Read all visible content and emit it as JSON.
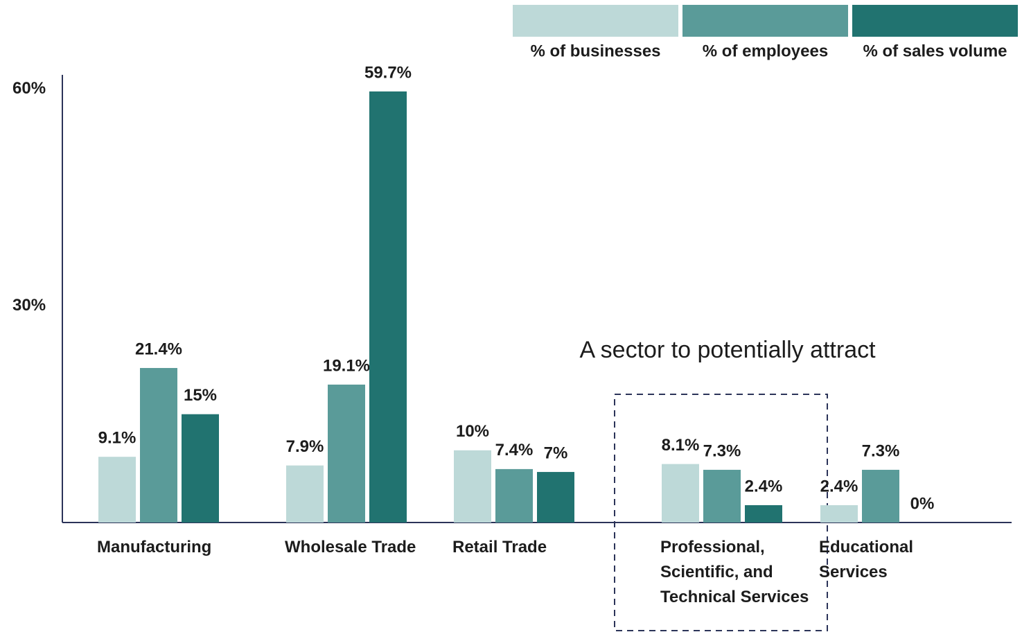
{
  "chart_data": {
    "type": "bar",
    "categories": [
      "Manufacturing",
      "Wholesale Trade",
      "Retail Trade",
      "Professional, Scientific, and Technical Services",
      "Educational Services"
    ],
    "series": [
      {
        "name": "% of businesses",
        "color": "#bdd9d8",
        "values": [
          9.1,
          7.9,
          10,
          8.1,
          2.4
        ],
        "value_labels": [
          "9.1%",
          "7.9%",
          "10%",
          "8.1%",
          "2.4%"
        ]
      },
      {
        "name": "% of employees",
        "color": "#5a9b99",
        "values": [
          21.4,
          19.1,
          7.4,
          7.3,
          7.3
        ],
        "value_labels": [
          "21.4%",
          "19.1%",
          "7.4%",
          "7.3%",
          "7.3%"
        ]
      },
      {
        "name": "% of sales volume",
        "color": "#217370",
        "values": [
          15,
          59.7,
          7,
          2.4,
          0
        ],
        "value_labels": [
          "15%",
          "59.7%",
          "7%",
          "2.4%",
          "0%"
        ]
      }
    ],
    "ylim": [
      0,
      62
    ],
    "yticks": [
      {
        "value": 30,
        "label": "30%"
      },
      {
        "value": 60,
        "label": "60%"
      }
    ],
    "legend": "top-right",
    "annotation": "A sector to potentially attract"
  }
}
